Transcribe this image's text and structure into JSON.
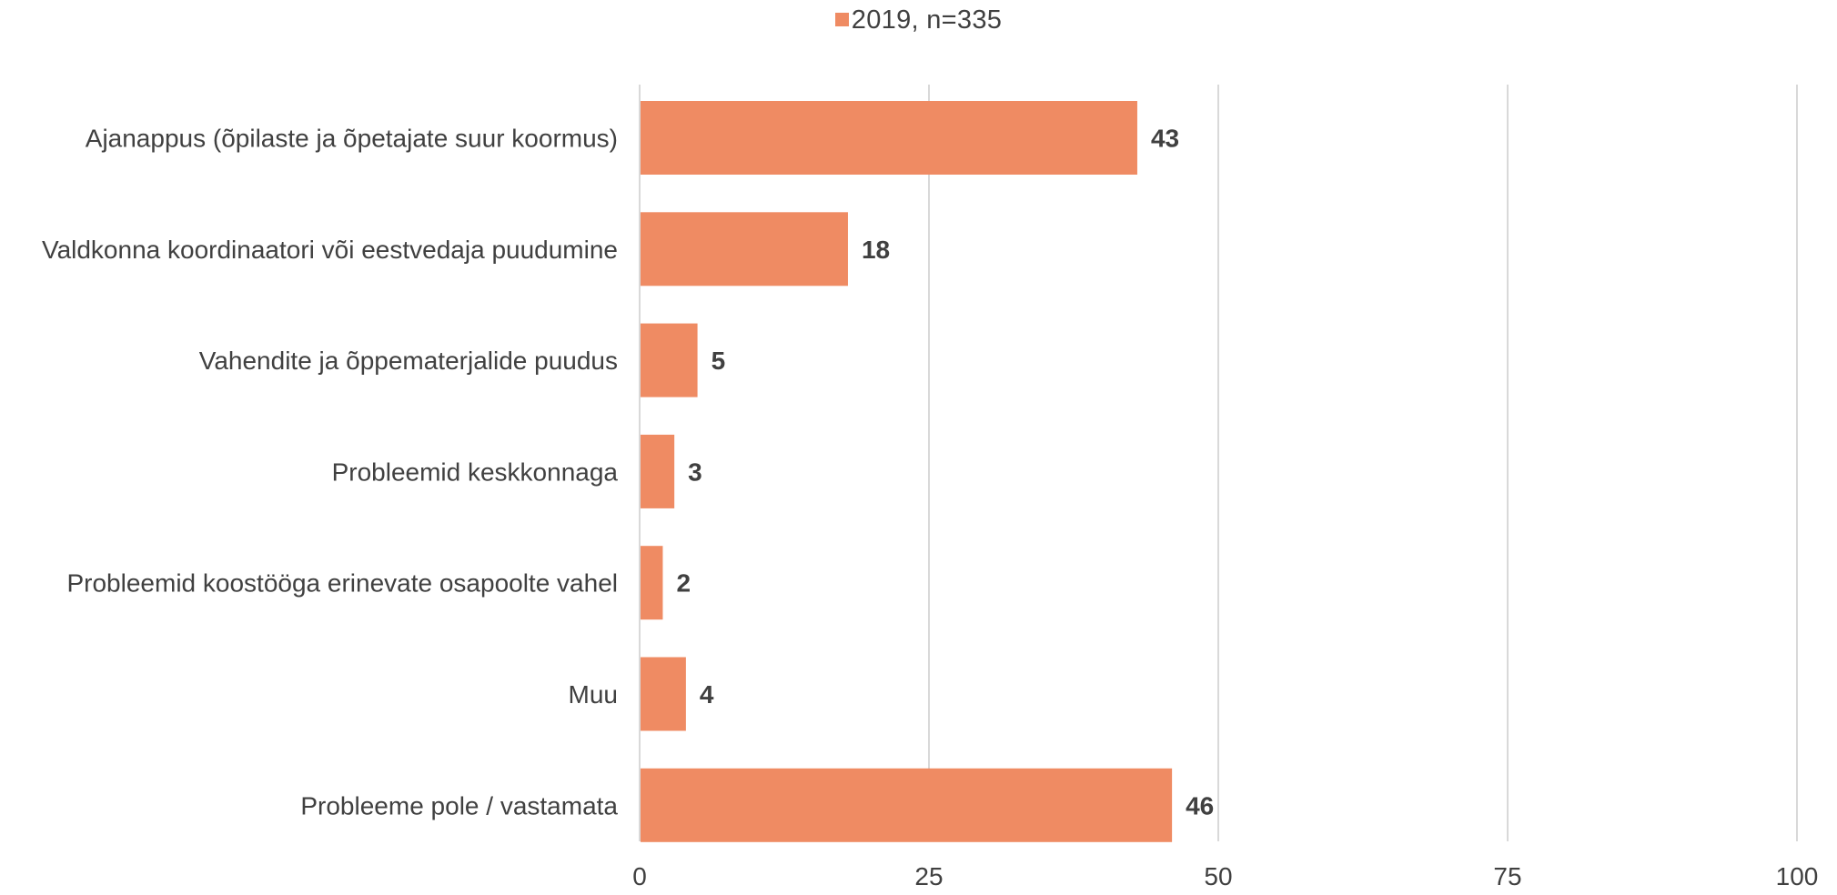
{
  "legend": {
    "label": "2019, n=335"
  },
  "colors": {
    "bar": "#ef8b63",
    "grid": "#d9d9d9",
    "text": "#404040"
  },
  "chart_data": {
    "type": "bar",
    "orientation": "horizontal",
    "categories": [
      "Ajanappus (õpilaste ja õpetajate suur koormus)",
      "Valdkonna koordinaatori või eestvedaja puudumine",
      "Vahendite ja õppematerjalide puudus",
      "Probleemid keskkonnaga",
      "Probleemid koostööga erinevate osapoolte vahel",
      "Muu",
      "Probleeme pole / vastamata"
    ],
    "series": [
      {
        "name": "2019, n=335",
        "values": [
          43,
          18,
          5,
          3,
          2,
          4,
          46
        ]
      }
    ],
    "xlim": [
      0,
      100
    ],
    "xticks": [
      0,
      25,
      50,
      75,
      100
    ],
    "grid": true,
    "legend_position": "top"
  }
}
